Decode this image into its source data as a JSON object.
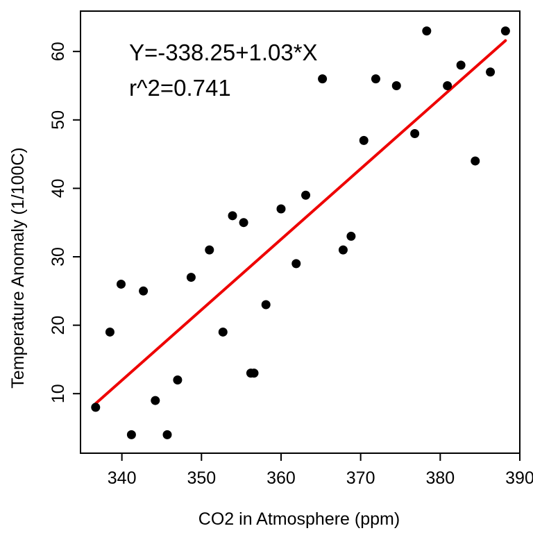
{
  "chart_data": {
    "type": "scatter",
    "xlabel": "CO2 in Atmosphere (ppm)",
    "ylabel": "Temperature Anomaly (1/100C)",
    "xlim": [
      334.8,
      390.0
    ],
    "ylim": [
      1.3,
      65.9
    ],
    "xticks": [
      340,
      350,
      360,
      370,
      380,
      390
    ],
    "yticks": [
      10,
      20,
      30,
      40,
      50,
      60
    ],
    "grid": false,
    "point_color": "#000000",
    "line_color": "#ee0000",
    "points": [
      {
        "x": 336.7,
        "y": 8
      },
      {
        "x": 338.5,
        "y": 19
      },
      {
        "x": 339.9,
        "y": 26
      },
      {
        "x": 341.2,
        "y": 4
      },
      {
        "x": 342.7,
        "y": 25
      },
      {
        "x": 344.2,
        "y": 9
      },
      {
        "x": 345.7,
        "y": 4
      },
      {
        "x": 347.0,
        "y": 12
      },
      {
        "x": 348.7,
        "y": 27
      },
      {
        "x": 351.0,
        "y": 31
      },
      {
        "x": 352.7,
        "y": 19
      },
      {
        "x": 353.9,
        "y": 36
      },
      {
        "x": 355.3,
        "y": 35
      },
      {
        "x": 356.2,
        "y": 13
      },
      {
        "x": 356.6,
        "y": 13
      },
      {
        "x": 358.1,
        "y": 23
      },
      {
        "x": 360.0,
        "y": 37
      },
      {
        "x": 361.9,
        "y": 29
      },
      {
        "x": 363.1,
        "y": 39
      },
      {
        "x": 365.2,
        "y": 56
      },
      {
        "x": 367.8,
        "y": 31
      },
      {
        "x": 368.8,
        "y": 33
      },
      {
        "x": 370.4,
        "y": 47
      },
      {
        "x": 371.9,
        "y": 56
      },
      {
        "x": 374.5,
        "y": 55
      },
      {
        "x": 376.8,
        "y": 48
      },
      {
        "x": 378.3,
        "y": 63
      },
      {
        "x": 380.9,
        "y": 55
      },
      {
        "x": 382.6,
        "y": 58
      },
      {
        "x": 384.4,
        "y": 44
      },
      {
        "x": 386.3,
        "y": 57
      },
      {
        "x": 388.2,
        "y": 63
      }
    ],
    "regression": {
      "intercept": -338.25,
      "slope": 1.03,
      "x_range": [
        336.7,
        388.2
      ]
    },
    "annotations": [
      "Y=-338.25+1.03*X",
      "r^2=0.741"
    ]
  }
}
